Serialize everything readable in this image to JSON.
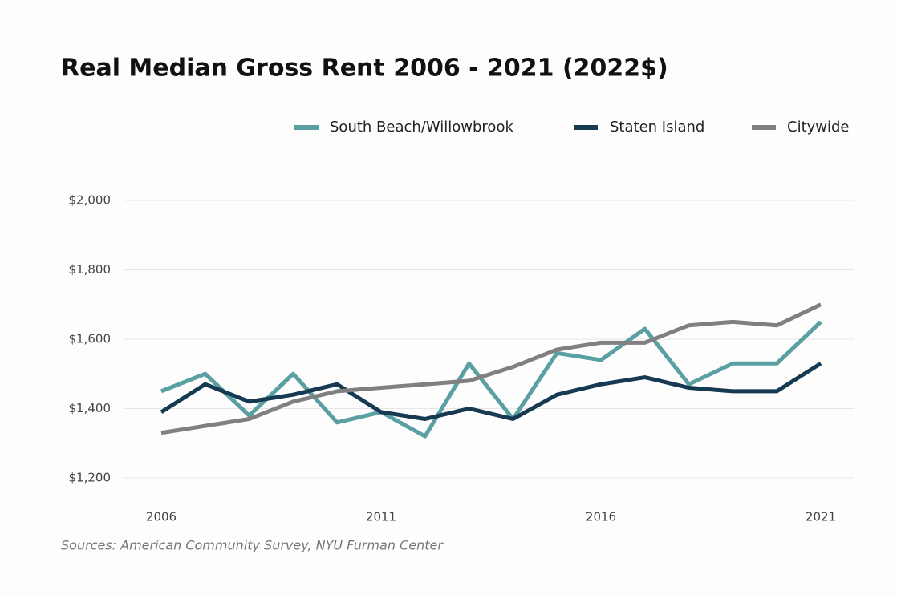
{
  "chart_data": {
    "type": "line",
    "title": "Real Median Gross Rent 2006 - 2021 (2022$)",
    "source": "Sources: American Community Survey, NYU Furman Center",
    "x": [
      2006,
      2007,
      2008,
      2009,
      2010,
      2011,
      2012,
      2013,
      2014,
      2015,
      2016,
      2017,
      2018,
      2019,
      2020,
      2021
    ],
    "xlim": [
      2006,
      2021
    ],
    "xticks": [
      2006,
      2011,
      2016,
      2021
    ],
    "ylim": [
      1200,
      2000
    ],
    "yticks": [
      {
        "value": 1200,
        "label": "$1,200"
      },
      {
        "value": 1400,
        "label": "$1,400"
      },
      {
        "value": 1600,
        "label": "$1,600"
      },
      {
        "value": 1800,
        "label": "$1,800"
      },
      {
        "value": 2000,
        "label": "$2,000"
      }
    ],
    "grid": true,
    "legend": "top-right",
    "series": [
      {
        "name": "South Beach/Willowbrook",
        "color": "#5a9fa1",
        "values": [
          1450,
          1500,
          1380,
          1500,
          1360,
          1390,
          1320,
          1530,
          1370,
          1560,
          1540,
          1630,
          1470,
          1530,
          1530,
          1650
        ]
      },
      {
        "name": "Staten Island",
        "color": "#163a52",
        "values": [
          1390,
          1470,
          1420,
          1440,
          1470,
          1390,
          1370,
          1400,
          1370,
          1440,
          1470,
          1490,
          1460,
          1450,
          1450,
          1530
        ]
      },
      {
        "name": "Citywide",
        "color": "#808080",
        "values": [
          1330,
          1350,
          1370,
          1420,
          1450,
          1460,
          1470,
          1480,
          1520,
          1570,
          1590,
          1590,
          1640,
          1650,
          1640,
          1700
        ]
      }
    ]
  }
}
